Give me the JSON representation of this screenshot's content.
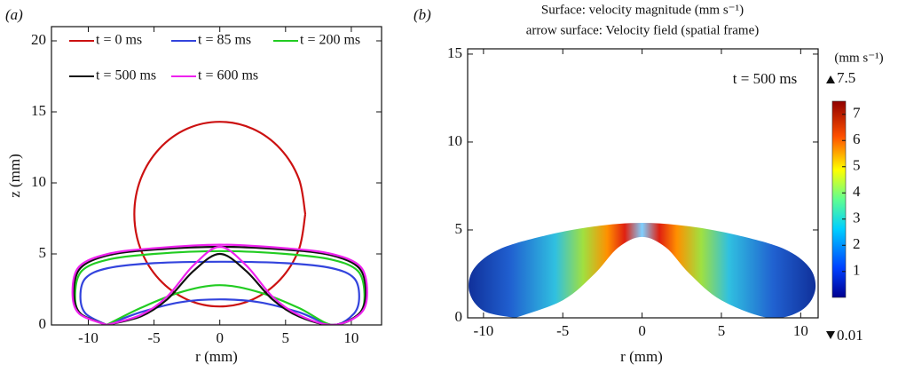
{
  "chart_data": [
    {
      "type": "line",
      "panel_label": "(a)",
      "xlabel": "r (mm)",
      "ylabel": "z (mm)",
      "xlim": [
        -12.8,
        12.3
      ],
      "ylim": [
        0,
        21
      ],
      "xticks": [
        -10,
        -5,
        0,
        5,
        10
      ],
      "yticks": [
        0,
        5,
        10,
        15,
        20
      ],
      "series": [
        {
          "name": "t = 0 ms",
          "color": "#cc1111",
          "x": [
            6.5,
            6.01,
            4.6,
            2.49,
            0,
            -2.49,
            -4.6,
            -6.01,
            -6.5,
            -6.01,
            -4.6,
            -2.49,
            0,
            2.49,
            4.6,
            6.01,
            6.5
          ],
          "values": [
            7.8,
            10.29,
            12.4,
            13.81,
            14.3,
            13.81,
            12.4,
            10.29,
            7.8,
            5.31,
            3.2,
            1.79,
            1.3,
            1.79,
            3.2,
            5.31,
            7.8
          ]
        },
        {
          "name": "t = 85 ms",
          "color": "#3344dd",
          "x": [
            -8.6,
            -10.2,
            -10.6,
            -10.2,
            -8.5,
            -5,
            0,
            5,
            8.5,
            10.2,
            10.6,
            10.2,
            8.6,
            6,
            3,
            0,
            -3,
            -6,
            -8.6
          ],
          "values": [
            0,
            0.8,
            2,
            3.3,
            4.0,
            4.35,
            4.45,
            4.35,
            4.0,
            3.3,
            2,
            0.8,
            0,
            0.9,
            1.6,
            1.8,
            1.6,
            0.9,
            0
          ]
        },
        {
          "name": "t = 200 ms",
          "color": "#22cc22",
          "x": [
            -8.6,
            -10.6,
            -11,
            -10.5,
            -8.5,
            -5,
            0,
            5,
            8.5,
            10.5,
            11,
            10.6,
            8.6,
            6,
            3,
            0,
            -3,
            -6,
            -8.6
          ],
          "values": [
            0,
            0.8,
            2.2,
            3.8,
            4.6,
            5.0,
            5.2,
            5.0,
            4.6,
            3.8,
            2.2,
            0.8,
            0,
            1.2,
            2.3,
            2.8,
            2.3,
            1.2,
            0
          ]
        },
        {
          "name": "t = 500 ms",
          "color": "#111111",
          "x": [
            -8.6,
            -10.6,
            -11.1,
            -10.6,
            -8.5,
            -5,
            0,
            5,
            8.5,
            10.6,
            11.1,
            10.6,
            8.6,
            6,
            4,
            2,
            0,
            -2,
            -4,
            -6,
            -8.6
          ],
          "values": [
            0,
            0.8,
            2.3,
            4.0,
            4.9,
            5.3,
            5.5,
            5.3,
            4.9,
            4.0,
            2.3,
            0.8,
            0,
            0.6,
            1.8,
            3.8,
            5.0,
            3.8,
            1.8,
            0.6,
            0
          ]
        },
        {
          "name": "t = 600 ms",
          "color": "#ee22ee",
          "x": [
            -8.6,
            -10.7,
            -11.2,
            -10.7,
            -8.5,
            -5,
            0,
            5,
            8.5,
            10.7,
            11.2,
            10.7,
            8.6,
            6,
            4,
            2,
            0,
            -2,
            -4,
            -6,
            -8.6
          ],
          "values": [
            0,
            0.8,
            2.3,
            4.1,
            5.0,
            5.4,
            5.65,
            5.4,
            5.0,
            4.1,
            2.3,
            0.8,
            0,
            0.7,
            2.0,
            4.2,
            5.5,
            4.2,
            2.0,
            0.7,
            0
          ]
        }
      ]
    },
    {
      "type": "surface",
      "panel_label": "(b)",
      "title": [
        "Surface: velocity magnitude (mm s⁻¹)",
        "arrow surface: Velocity field (spatial frame)"
      ],
      "annotation": "t = 500 ms",
      "xlabel": "r (mm)",
      "xlim": [
        -11,
        11.1
      ],
      "ylim": [
        0,
        15.3
      ],
      "xticks": [
        -10,
        -5,
        0,
        5,
        10
      ],
      "yticks": [
        0,
        5,
        10,
        15
      ],
      "boundary": {
        "x": [
          -8,
          -10,
          -10.9,
          -10.6,
          -9,
          -6,
          -3,
          0,
          3,
          6,
          9,
          10.6,
          10.9,
          10,
          8,
          5,
          3,
          1.5,
          0,
          -1.5,
          -3,
          -5,
          -8
        ],
        "values": [
          0,
          0.4,
          1.5,
          2.8,
          3.9,
          4.7,
          5.2,
          5.4,
          5.2,
          4.7,
          3.9,
          2.8,
          1.5,
          0.4,
          0,
          1,
          2.5,
          4,
          4.6,
          4,
          2.5,
          1,
          0
        ]
      },
      "colorbar": {
        "label": "(mm s⁻¹)",
        "lim": [
          0.01,
          7.5
        ],
        "ticks": [
          1,
          2,
          3,
          4,
          5,
          6,
          7
        ]
      }
    }
  ]
}
